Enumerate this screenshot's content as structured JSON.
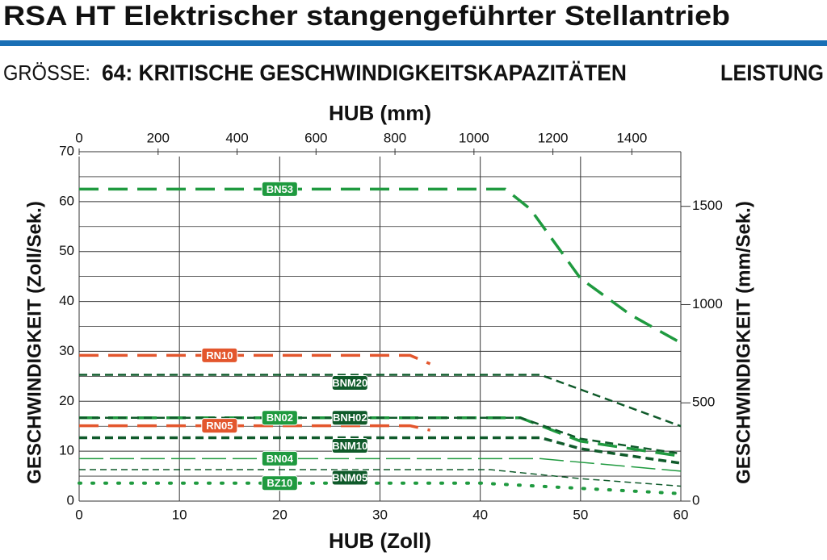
{
  "header": {
    "title": "RSA HT Elektrischer stangengeführter Stellantrieb",
    "size_label": "GRÖSSE:",
    "subtitle": "64: KRITISCHE GESCHWINDIGKEITSKAPAZITÄTEN",
    "section": "LEISTUNG"
  },
  "chart_data": {
    "type": "line",
    "x_label": "HUB (Zoll)",
    "x2_label": "HUB (mm)",
    "y_label": "GESCHWINDIGKEIT (Zoll/Sek.)",
    "y2_label": "GESCHWINDIGKEIT (mm/Sek.)",
    "xlim": [
      0,
      60
    ],
    "xticks": [
      0,
      10,
      20,
      30,
      40,
      50,
      60
    ],
    "x2lim": [
      0,
      1524
    ],
    "x2ticks": [
      0,
      200,
      400,
      600,
      800,
      1000,
      1200,
      1400
    ],
    "ylim": [
      0,
      70
    ],
    "yticks": [
      0,
      10,
      20,
      30,
      40,
      50,
      60,
      70
    ],
    "y2lim": [
      0,
      1778
    ],
    "y2ticks": [
      0,
      500,
      1000,
      1500
    ],
    "grid": true,
    "minor_grid": [
      5,
      15,
      25,
      35,
      45,
      55,
      65
    ],
    "series": [
      {
        "name": "BN53",
        "color": "#1f9a3f",
        "dash": "24 12",
        "width": 3.5,
        "x": [
          0,
          42.5,
          45,
          50,
          55,
          60
        ],
        "values": [
          62.5,
          62.5,
          58.5,
          44.6,
          37.3,
          31.7
        ]
      },
      {
        "name": "RN10",
        "color": "#e3562d",
        "dash": "24 12",
        "width": 3.5,
        "x": [
          0,
          33,
          35
        ],
        "values": [
          29.2,
          29.2,
          27.5
        ]
      },
      {
        "name": "BNM20",
        "color": "#0f5a2a",
        "dash": "10 6",
        "width": 2.5,
        "x": [
          0,
          46,
          60
        ],
        "values": [
          25.3,
          25.3,
          15
        ]
      },
      {
        "name": "BN02",
        "color": "#1f9a3f",
        "dash": "24 12",
        "width": 3.5,
        "x": [
          0,
          44,
          50,
          60
        ],
        "values": [
          16.7,
          16.7,
          12,
          9
        ]
      },
      {
        "name": "BNH02",
        "color": "#0f5a2a",
        "dash": "10 6",
        "width": 2.5,
        "x": [
          0,
          44,
          50,
          60
        ],
        "values": [
          16.7,
          16.7,
          12.5,
          9.5
        ]
      },
      {
        "name": "RN05",
        "color": "#e3562d",
        "dash": "24 12",
        "width": 3.5,
        "x": [
          0,
          33,
          35
        ],
        "values": [
          15.1,
          15.1,
          14.2
        ]
      },
      {
        "name": "BNM10",
        "color": "#0f5a2a",
        "dash": "10 6",
        "width": 3.5,
        "x": [
          0,
          46,
          50,
          60
        ],
        "values": [
          12.7,
          12.7,
          10.5,
          7.6
        ]
      },
      {
        "name": "BN04",
        "color": "#1f9a3f",
        "dash": "30 8",
        "width": 1.5,
        "x": [
          0,
          46,
          60
        ],
        "values": [
          8.5,
          8.5,
          6
        ]
      },
      {
        "name": "BNM05",
        "color": "#0f5a2a",
        "dash": "8 5",
        "width": 1.5,
        "x": [
          0,
          41,
          50,
          60
        ],
        "values": [
          6.3,
          6.3,
          4.5,
          3
        ]
      },
      {
        "name": "BZ10",
        "color": "#1f9a3f",
        "dash": "2 14",
        "width": 4,
        "x": [
          0,
          40,
          60
        ],
        "values": [
          3.6,
          3.6,
          1.5
        ]
      }
    ]
  }
}
